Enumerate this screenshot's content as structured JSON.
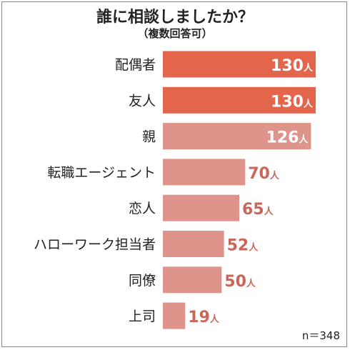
{
  "chart_data": {
    "type": "bar",
    "orientation": "horizontal",
    "title": "誰に相談しましたか？",
    "subtitle": "（複数回答可）",
    "categories": [
      "配偶者",
      "友人",
      "親",
      "転職エージェント",
      "恋人",
      "ハローワーク担当者",
      "同僚",
      "上司"
    ],
    "values": [
      130,
      130,
      126,
      70,
      65,
      52,
      50,
      19
    ],
    "unit": "人",
    "xlim": [
      0,
      130
    ],
    "grid": false,
    "legend": "none",
    "note": "n＝348",
    "colors": {
      "top": "#e2654c",
      "rest": "#de948a",
      "label_on_bar": "#ffffff",
      "label_outside": "#c9665a"
    }
  }
}
